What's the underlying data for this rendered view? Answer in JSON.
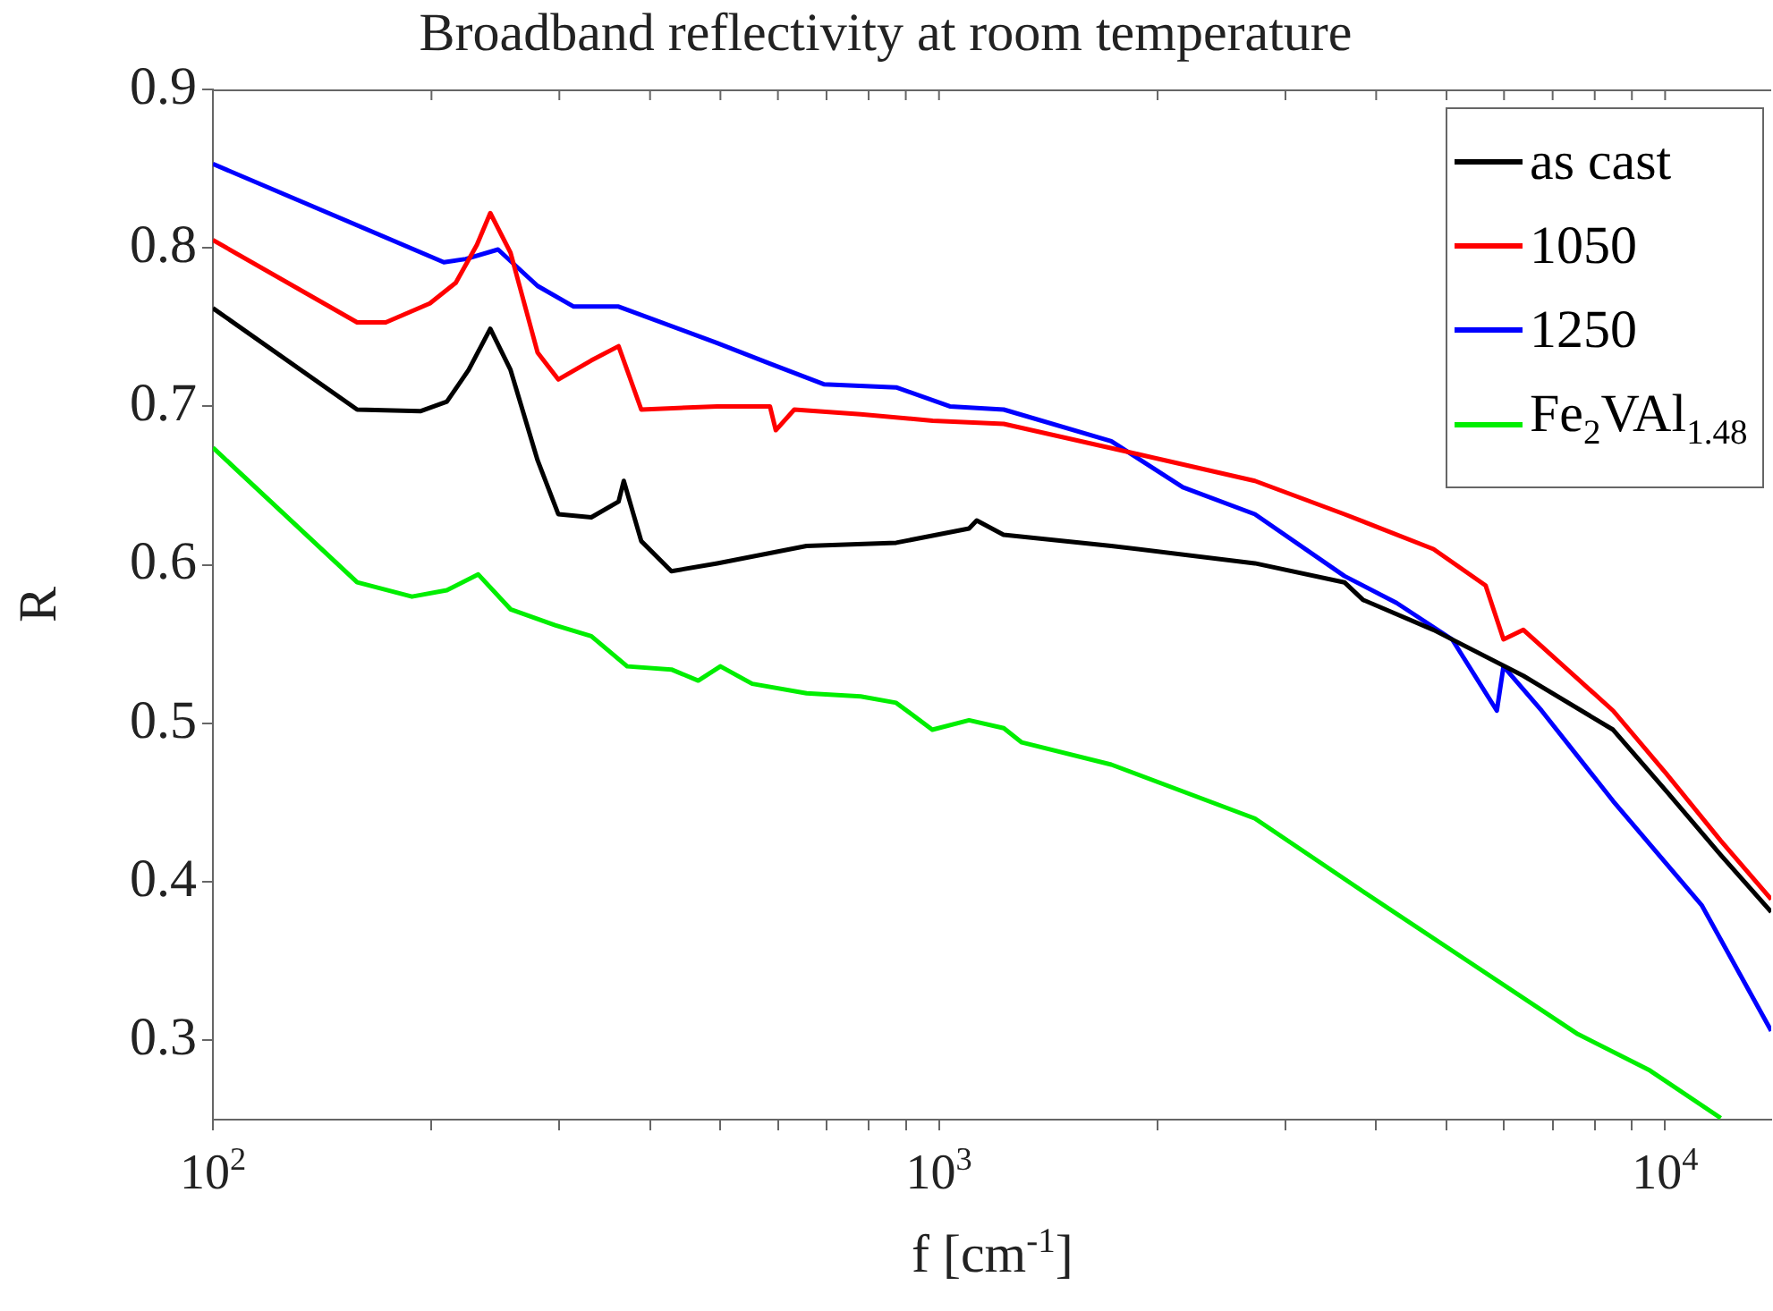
{
  "chart_data": {
    "type": "line",
    "title": "Broadband reflectivity at room temperature",
    "xlabel": "f [cm$^{-1}$]",
    "ylabel": "R",
    "log": "x",
    "legend": "top right",
    "xlim": [
      100,
      14000
    ],
    "ylim": [
      0.25,
      0.9
    ],
    "xticks": [
      {
        "value": 100,
        "label": "10$^{2}$"
      },
      {
        "value": 200,
        "label": null
      },
      {
        "value": 300,
        "label": null
      },
      {
        "value": 400,
        "label": null
      },
      {
        "value": 500,
        "label": null
      },
      {
        "value": 600,
        "label": null
      },
      {
        "value": 700,
        "label": null
      },
      {
        "value": 800,
        "label": null
      },
      {
        "value": 900,
        "label": null
      },
      {
        "value": 1000,
        "label": "10$^{3}$"
      },
      {
        "value": 2000,
        "label": null
      },
      {
        "value": 3000,
        "label": null
      },
      {
        "value": 4000,
        "label": null
      },
      {
        "value": 5000,
        "label": null
      },
      {
        "value": 6000,
        "label": null
      },
      {
        "value": 7000,
        "label": null
      },
      {
        "value": 8000,
        "label": null
      },
      {
        "value": 9000,
        "label": null
      },
      {
        "value": 10000,
        "label": "10$^{4}$"
      }
    ],
    "yticks": [
      0.3,
      0.4,
      0.5,
      0.6,
      0.7,
      0.8,
      0.9
    ],
    "series": [
      {
        "name": "as cast",
        "color": "#000000",
        "x": [
          100,
          158,
          193,
          210,
          225,
          241,
          257,
          280,
          299,
          332,
          362,
          368,
          389,
          428,
          495,
          657,
          873,
          1100,
          1127,
          1227,
          1727,
          2723,
          3617,
          3835,
          4797,
          6380,
          8480,
          10050,
          11930,
          14000
        ],
        "values": [
          0.762,
          0.698,
          0.697,
          0.703,
          0.723,
          0.749,
          0.723,
          0.666,
          0.632,
          0.63,
          0.64,
          0.653,
          0.615,
          0.596,
          0.601,
          0.612,
          0.614,
          0.623,
          0.628,
          0.619,
          0.612,
          0.601,
          0.589,
          0.578,
          0.559,
          0.53,
          0.496,
          0.457,
          0.417,
          0.381
        ]
      },
      {
        "name": "1050",
        "color": "#ff0000",
        "x": [
          100,
          158,
          173,
          199,
          216,
          231,
          241,
          257,
          280,
          299,
          332,
          362,
          389,
          495,
          585,
          596,
          632,
          780,
          980,
          1228,
          2047,
          2723,
          3617,
          4797,
          5660,
          5990,
          6380,
          8480,
          10050,
          11930,
          14000
        ],
        "values": [
          0.805,
          0.753,
          0.753,
          0.765,
          0.778,
          0.802,
          0.822,
          0.797,
          0.734,
          0.717,
          0.729,
          0.738,
          0.698,
          0.7,
          0.7,
          0.685,
          0.698,
          0.695,
          0.691,
          0.689,
          0.666,
          0.653,
          0.632,
          0.61,
          0.587,
          0.553,
          0.559,
          0.508,
          0.468,
          0.426,
          0.389
        ]
      },
      {
        "name": "1250",
        "color": "#0000ff",
        "x": [
          100,
          208,
          223,
          247,
          280,
          314,
          362,
          495,
          585,
          694,
          873,
          1035,
          1228,
          1727,
          2167,
          2723,
          3617,
          4268,
          5090,
          5865,
          5990,
          6760,
          8480,
          11240,
          14000
        ],
        "values": [
          0.853,
          0.791,
          0.793,
          0.799,
          0.776,
          0.763,
          0.763,
          0.74,
          0.727,
          0.714,
          0.712,
          0.7,
          0.698,
          0.678,
          0.649,
          0.632,
          0.593,
          0.576,
          0.553,
          0.508,
          0.536,
          0.508,
          0.451,
          0.385,
          0.306
        ]
      },
      {
        "name": "Fe$_{2}$VAl$_{1.48}$",
        "color": "#00ee00",
        "x": [
          100,
          158,
          188,
          210,
          232,
          257,
          296,
          332,
          372,
          428,
          466,
          500,
          553,
          657,
          780,
          873,
          979,
          1100,
          1228,
          1300,
          1727,
          2723,
          3835,
          5390,
          7580,
          9530,
          11930
        ],
        "values": [
          0.674,
          0.589,
          0.58,
          0.584,
          0.594,
          0.572,
          0.562,
          0.555,
          0.536,
          0.534,
          0.527,
          0.536,
          0.525,
          0.519,
          0.517,
          0.513,
          0.496,
          0.502,
          0.497,
          0.488,
          0.474,
          0.44,
          0.394,
          0.349,
          0.304,
          0.281,
          0.251
        ]
      }
    ]
  }
}
